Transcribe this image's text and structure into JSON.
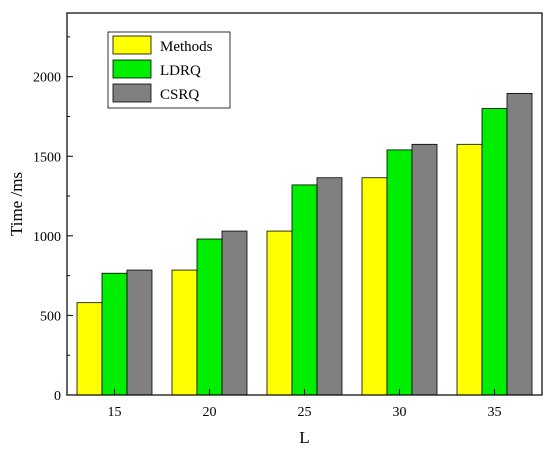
{
  "chart_data": {
    "type": "bar",
    "title": "",
    "xlabel": "L",
    "ylabel": "Time /ms",
    "categories": [
      "15",
      "20",
      "25",
      "30",
      "35"
    ],
    "ylim": [
      0,
      2400
    ],
    "yticks": [
      0,
      500,
      1000,
      1500,
      2000
    ],
    "grid": false,
    "legend_position": "top-left",
    "series": [
      {
        "name": "Methods",
        "color": "#ffff00",
        "values": [
          580,
          785,
          1030,
          1365,
          1575
        ]
      },
      {
        "name": "LDRQ",
        "color": "#00ee00",
        "values": [
          765,
          980,
          1320,
          1540,
          1800
        ]
      },
      {
        "name": "CSRQ",
        "color": "#808080",
        "values": [
          785,
          1030,
          1365,
          1575,
          1895
        ]
      }
    ]
  }
}
